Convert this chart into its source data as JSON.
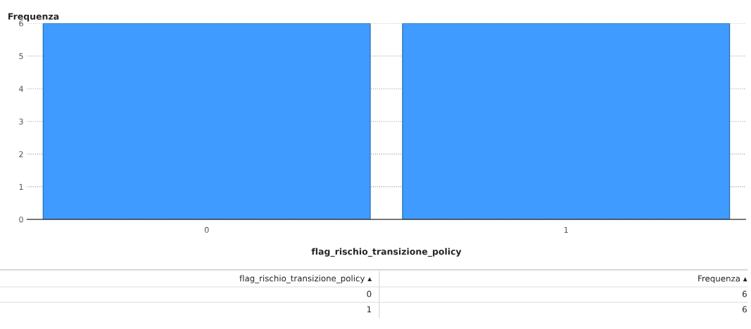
{
  "chart_data": {
    "type": "bar",
    "xlabel": "flag_rischio_transizione_policy",
    "ylabel": "Frequenza",
    "categories": [
      "0",
      "1"
    ],
    "values": [
      6,
      6
    ],
    "color": "#3f9bff",
    "ylim": [
      0,
      6
    ],
    "yticks": [
      0,
      1,
      2,
      3,
      4,
      5,
      6
    ],
    "grid": "y",
    "annotations": [
      "flag_rischio_transizione_policy ▴",
      "Frequenza ▴",
      "0",
      "6",
      "1",
      "6"
    ]
  }
}
